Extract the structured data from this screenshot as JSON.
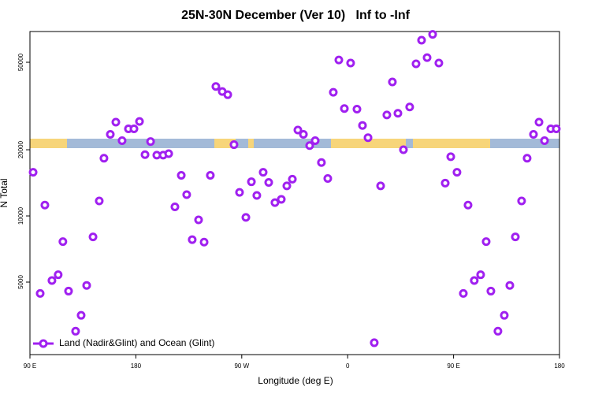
{
  "chart_data": {
    "type": "scatter",
    "title": "25N-30N December (Ver 10)   Inf to -Inf",
    "xlabel": "Longitude (deg E)",
    "ylabel": "N Total",
    "xlim": [
      90,
      540
    ],
    "ylim": [
      2340,
      69000
    ],
    "ylog": true,
    "xticks": [
      {
        "value": 90,
        "label": "90 E"
      },
      180,
      {
        "value": 270,
        "label": "90 W"
      },
      {
        "value": 360,
        "label": "0"
      },
      {
        "value": 450,
        "label": "90 E"
      },
      {
        "value": 540,
        "label": "180"
      }
    ],
    "yticks": [
      5000,
      10000,
      20000,
      50000
    ],
    "legend": "bottom-left",
    "series": [
      {
        "name": "Land (Nadir&Glint) and Ocean (Glint)",
        "color": "#a020f0",
        "x": [
          92.7,
          98.7,
          102.7,
          108.7,
          114,
          118,
          122.8,
          128.8,
          133.5,
          138.2,
          143.6,
          148.9,
          152.9,
          158.3,
          163,
          168.3,
          173.7,
          178.4,
          183.1,
          187.8,
          192.5,
          197.8,
          203.2,
          207.9,
          213.2,
          218.6,
          223.2,
          227.9,
          233.3,
          238,
          243.3,
          248,
          253.4,
          258.1,
          263.4,
          268.1,
          273.5,
          278.2,
          282.8,
          288.2,
          292.9,
          298.2,
          303.6,
          308.3,
          313,
          317.7,
          322.4,
          327.7,
          332.4,
          337.7,
          343.1,
          347.8,
          352.5,
          357.2,
          362.5,
          367.9,
          372.6,
          377.3,
          382.6,
          388,
          393.3,
          398,
          402.7,
          407.4,
          412.7,
          418.1,
          422.8,
          427.5,
          432.2,
          437.5,
          442.9,
          447.6,
          452.9,
          458.3,
          462.3,
          467.6,
          473,
          477.7,
          481.7,
          487.7,
          493.1,
          497.8,
          502.5,
          507.8,
          512.5,
          517.9,
          522.6,
          527.3,
          532.6,
          537.3
        ],
        "values": [
          15800,
          4440,
          11200,
          5085,
          5400,
          7640,
          4550,
          2990,
          3530,
          4830,
          8030,
          11700,
          18300,
          23500,
          26700,
          22000,
          24900,
          24900,
          26900,
          19000,
          21800,
          18900,
          18900,
          19200,
          11000,
          15300,
          12500,
          7800,
          9600,
          7600,
          15300,
          38800,
          36800,
          35600,
          21100,
          12800,
          9850,
          14300,
          12400,
          15800,
          14200,
          11500,
          11900,
          13700,
          14700,
          24600,
          23500,
          20900,
          22000,
          17500,
          14800,
          36500,
          51200,
          30800,
          49600,
          30600,
          25800,
          22700,
          2650,
          13700,
          28800,
          40700,
          29300,
          20000,
          31300,
          49200,
          63000,
          52500,
          67000,
          49600,
          14100,
          18600,
          15800,
          4440,
          11200,
          5085,
          5400,
          7640,
          4550,
          2990,
          3530,
          4830,
          8030,
          11700,
          18300,
          23500,
          26700,
          22000,
          24900,
          24900
        ]
      }
    ]
  }
}
